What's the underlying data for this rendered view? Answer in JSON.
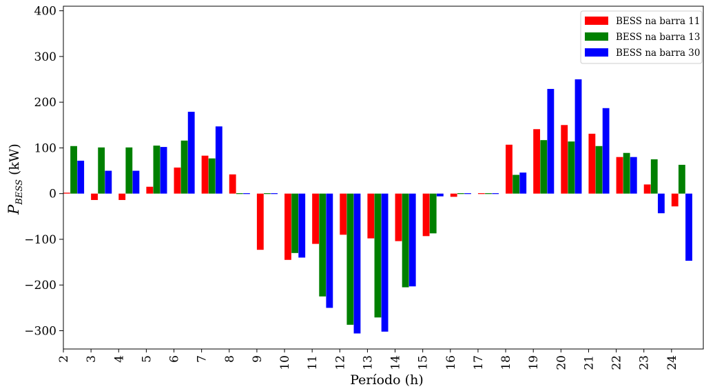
{
  "chart_data": {
    "type": "bar",
    "title": "",
    "xlabel": "Período (h)",
    "ylabel": "P_BESS (kW)",
    "ylabel_main": "P",
    "ylabel_sub": "BESS",
    "ylabel_unit": " (kW)",
    "categories": [
      "2",
      "3",
      "4",
      "5",
      "6",
      "7",
      "8",
      "9",
      "10",
      "11",
      "12",
      "13",
      "14",
      "15",
      "16",
      "17",
      "18",
      "19",
      "20",
      "21",
      "22",
      "23",
      "24"
    ],
    "ylim": [
      -340,
      410
    ],
    "yticks": [
      -300,
      -200,
      -100,
      0,
      100,
      200,
      300,
      400
    ],
    "ytick_labels": [
      "−300",
      "−200",
      "−100",
      "0",
      "100",
      "200",
      "300",
      "400"
    ],
    "grid": false,
    "legend_position": "top-right",
    "series": [
      {
        "name": "BESS na barra 11",
        "color": "#ff0000",
        "values": [
          2,
          -14,
          -14,
          15,
          57,
          83,
          42,
          -123,
          -145,
          -110,
          -90,
          -98,
          -104,
          -93,
          -7,
          0,
          107,
          141,
          150,
          131,
          80,
          20,
          -28
        ]
      },
      {
        "name": "BESS na barra 13",
        "color": "#008000",
        "values": [
          104,
          101,
          101,
          105,
          116,
          77,
          0,
          0,
          -130,
          -225,
          -287,
          -271,
          -205,
          -87,
          0,
          0,
          41,
          117,
          114,
          104,
          89,
          75,
          63
        ]
      },
      {
        "name": "BESS na barra 30",
        "color": "#0000ff",
        "values": [
          72,
          50,
          50,
          102,
          179,
          147,
          0,
          0,
          -140,
          -250,
          -306,
          -302,
          -203,
          -6,
          0,
          0,
          46,
          229,
          250,
          187,
          80,
          -43,
          -147
        ]
      }
    ]
  }
}
